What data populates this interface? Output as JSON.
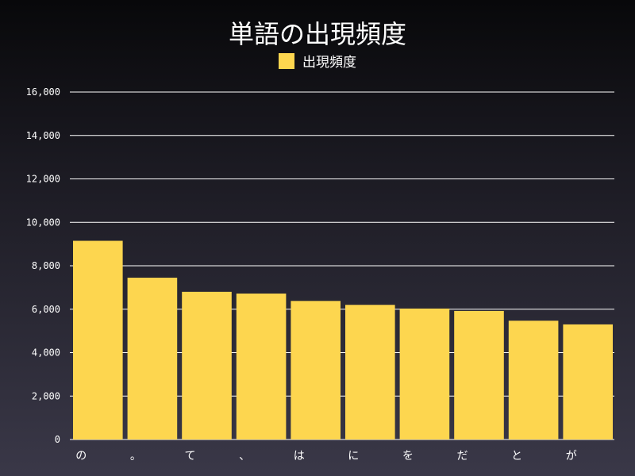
{
  "chart_data": {
    "type": "bar",
    "title": "単語の出現頻度",
    "categories": [
      "の",
      "。",
      "て",
      "、",
      "は",
      "に",
      "を",
      "だ",
      "と",
      "が"
    ],
    "series": [
      {
        "name": "出現頻度",
        "values": [
          9150,
          7450,
          6800,
          6720,
          6380,
          6200,
          6030,
          5920,
          5470,
          5300
        ]
      }
    ],
    "ylim": [
      0,
      16000
    ],
    "yticks": [
      0,
      2000,
      4000,
      6000,
      8000,
      10000,
      12000,
      14000,
      16000
    ],
    "ytick_labels": [
      "0",
      "2,000",
      "4,000",
      "6,000",
      "8,000",
      "10,000",
      "12,000",
      "14,000",
      "16,000"
    ],
    "grid": true,
    "legend_position": "top-center",
    "colors": {
      "bar": "#fdd64f",
      "grid": "#ffffff"
    }
  }
}
